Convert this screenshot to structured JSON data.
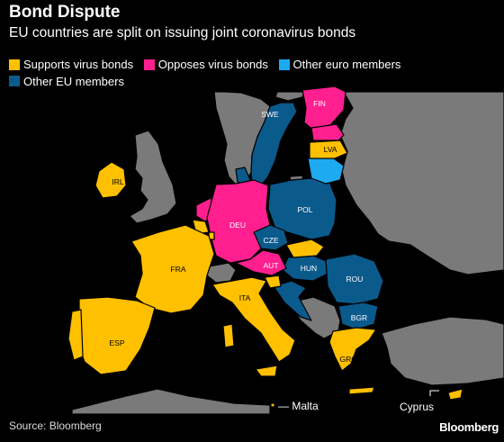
{
  "title": "Bond Dispute",
  "subtitle": "EU countries are split on issuing joint coronavirus bonds",
  "legend": [
    {
      "label": "Supports virus bonds",
      "color": "#ffc000"
    },
    {
      "label": "Opposes virus bonds",
      "color": "#ff1f8f"
    },
    {
      "label": "Other euro members",
      "color": "#1eaaf1"
    },
    {
      "label": "Other EU members",
      "color": "#0b5a8c"
    }
  ],
  "colors": {
    "supports": "#ffc000",
    "opposes": "#ff1f8f",
    "euro": "#1eaaf1",
    "other_eu": "#0b5a8c",
    "non_eu": "#7a7a7a"
  },
  "labels": {
    "swe": "SWE",
    "fin": "FIN",
    "lva": "LVA",
    "irl": "IRL",
    "deu": "DEU",
    "pol": "POL",
    "cze": "CZE",
    "aut": "AUT",
    "hun": "HUN",
    "rou": "ROU",
    "fra": "FRA",
    "ita": "ITA",
    "bgr": "BGR",
    "esp": "ESP",
    "grc": "GRC",
    "malta": "— Malta",
    "cyprus": "Cyprus"
  },
  "source": "Source: Bloomberg",
  "brand": "Bloomberg"
}
